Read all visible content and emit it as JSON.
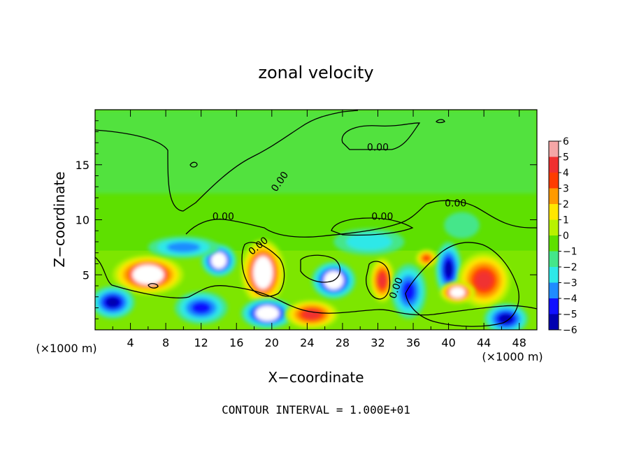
{
  "chart_data": {
    "type": "heatmap",
    "title": "zonal velocity",
    "xlabel": "X−coordinate",
    "ylabel": "Z−coordinate",
    "x_unit_left": "(×1000 m)",
    "x_unit_right": "(×1000 m)",
    "xlim": [
      0,
      50
    ],
    "ylim": [
      0,
      20
    ],
    "x_ticks": [
      4,
      8,
      12,
      16,
      20,
      24,
      28,
      32,
      36,
      40,
      44,
      48
    ],
    "y_ticks": [
      5,
      10,
      15
    ],
    "colorbar": {
      "ticks": [
        6,
        5,
        4,
        3,
        2,
        1,
        0,
        -1,
        -2,
        -3,
        -4,
        -5,
        -6
      ],
      "tick_labels": [
        "6",
        "5",
        "4",
        "3",
        "2",
        "1",
        "0",
        "−1",
        "−2",
        "−3",
        "−4",
        "−5",
        "−6"
      ],
      "colors": [
        "#f4a6a6",
        "#f03030",
        "#ff3c00",
        "#ff9a00",
        "#ffe600",
        "#b8f200",
        "#5ee000",
        "#44e68a",
        "#2ee8e8",
        "#1f8cff",
        "#1010ff",
        "#0000b0",
        "#7a00b0"
      ]
    },
    "contour_labels": [
      "0.00",
      "0.00",
      "0.00",
      "0.00",
      "0.00",
      "0.00",
      "0.00"
    ],
    "blobs": [
      {
        "x": 6,
        "z": 5,
        "v": 6,
        "rx": 4,
        "rz": 1.8
      },
      {
        "x": 12,
        "z": 2,
        "v": -4,
        "rx": 3,
        "rz": 1.5
      },
      {
        "x": 2,
        "z": 2.5,
        "v": -5,
        "rx": 2.5,
        "rz": 1.5
      },
      {
        "x": 14,
        "z": 6.3,
        "v": -6,
        "rx": 2,
        "rz": 1.5
      },
      {
        "x": 19,
        "z": 5.2,
        "v": 6,
        "rx": 2.5,
        "rz": 3
      },
      {
        "x": 19.5,
        "z": 1.5,
        "v": -6,
        "rx": 3,
        "rz": 1.4
      },
      {
        "x": 27,
        "z": 4.5,
        "v": -6,
        "rx": 2.5,
        "rz": 1.7
      },
      {
        "x": 24.5,
        "z": 1.4,
        "v": 5,
        "rx": 3,
        "rz": 1.3
      },
      {
        "x": 32.5,
        "z": 4.5,
        "v": 5,
        "rx": 1.4,
        "rz": 2
      },
      {
        "x": 35.5,
        "z": 3.5,
        "v": -4,
        "rx": 2,
        "rz": 2.5
      },
      {
        "x": 40,
        "z": 5.5,
        "v": -5,
        "rx": 1.5,
        "rz": 2.5
      },
      {
        "x": 44,
        "z": 4.5,
        "v": 5,
        "rx": 3,
        "rz": 2.5
      },
      {
        "x": 41,
        "z": 3.4,
        "v": 6,
        "rx": 2,
        "rz": 1
      },
      {
        "x": 46.5,
        "z": 1,
        "v": -5,
        "rx": 2.5,
        "rz": 1.4
      },
      {
        "x": 10,
        "z": 7.5,
        "v": -3,
        "rx": 4,
        "rz": 1
      },
      {
        "x": 31,
        "z": 8,
        "v": -2,
        "rx": 4,
        "rz": 1.2
      },
      {
        "x": 41.5,
        "z": 9.5,
        "v": -1,
        "rx": 2,
        "rz": 1.2
      },
      {
        "x": 37.5,
        "z": 6.5,
        "v": 4,
        "rx": 1.2,
        "rz": 0.8
      }
    ]
  },
  "footer": {
    "contour_interval": "CONTOUR INTERVAL = 1.000E+01"
  }
}
